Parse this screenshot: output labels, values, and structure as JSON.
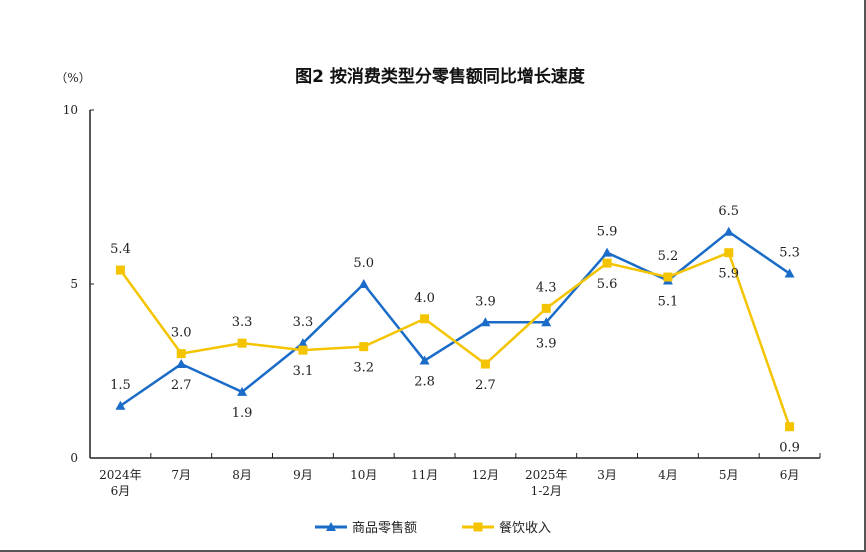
{
  "chart_data": {
    "type": "line",
    "title": "图2  按消费类型分零售额同比增长速度",
    "ylabel": "（%）",
    "xlabel": "",
    "ylim": [
      0,
      10
    ],
    "yticks": [
      "0",
      "5",
      "10"
    ],
    "categories": [
      [
        "2024年",
        "6月"
      ],
      [
        "7月"
      ],
      [
        "8月"
      ],
      [
        "9月"
      ],
      [
        "10月"
      ],
      [
        "11月"
      ],
      [
        "12月"
      ],
      [
        "2025年",
        "1-2月"
      ],
      [
        "3月"
      ],
      [
        "4月"
      ],
      [
        "5月"
      ],
      [
        "6月"
      ]
    ],
    "series": [
      {
        "name": "商品零售额",
        "color": "#1a6cc8",
        "marker": "triangle",
        "values": [
          1.5,
          2.7,
          1.9,
          3.3,
          5.0,
          2.8,
          3.9,
          3.9,
          5.9,
          5.1,
          6.5,
          5.3
        ],
        "labels": [
          "1.5",
          "2.7",
          "1.9",
          "3.3",
          "5.0",
          "2.8",
          "3.9",
          "3.9",
          "5.9",
          "5.1",
          "6.5",
          "5.3"
        ],
        "label_pos": [
          "above",
          "below",
          "below",
          "above",
          "above",
          "below",
          "above",
          "below",
          "above",
          "below",
          "above",
          "above"
        ]
      },
      {
        "name": "餐饮收入",
        "color": "#f5c400",
        "marker": "square",
        "values": [
          5.4,
          3.0,
          3.3,
          3.1,
          3.2,
          4.0,
          2.7,
          4.3,
          5.6,
          5.2,
          5.9,
          0.9
        ],
        "labels": [
          "5.4",
          "3.0",
          "3.3",
          "3.1",
          "3.2",
          "4.0",
          "2.7",
          "4.3",
          "5.6",
          "5.2",
          "5.9",
          "0.9"
        ],
        "label_pos": [
          "above",
          "above",
          "above",
          "below",
          "below",
          "above",
          "below",
          "above",
          "below",
          "above",
          "below",
          "below"
        ]
      }
    ],
    "legend": "bottom-center",
    "grid": false
  }
}
